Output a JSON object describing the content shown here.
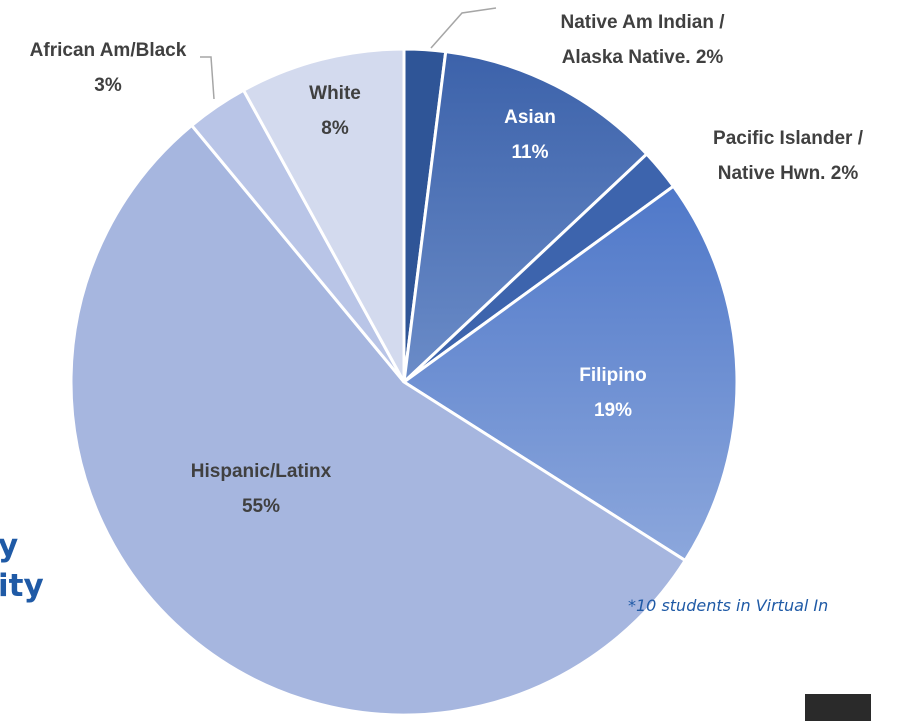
{
  "chart_data": {
    "type": "pie",
    "categories": [
      "Native Am Indian / Alaska Native.",
      "Asian",
      "Pacific Islander / Native Hwn.",
      "Filipino",
      "Hispanic/Latinx",
      "African Am/Black",
      "White"
    ],
    "values": [
      2,
      11,
      2,
      19,
      55,
      3,
      8
    ],
    "value_labels": [
      "2%",
      "11%",
      "2%",
      "19%",
      "55%",
      "3%",
      "8%"
    ],
    "colors": [
      "#2f5597",
      "#4a70b5",
      "#3d64ad",
      "#6a8fd3",
      "#a6b6df",
      "#b9c5e7",
      "#d3daee"
    ],
    "title_lines": [
      "y",
      "ity"
    ],
    "annotation": "*10 students in Virtual In"
  }
}
